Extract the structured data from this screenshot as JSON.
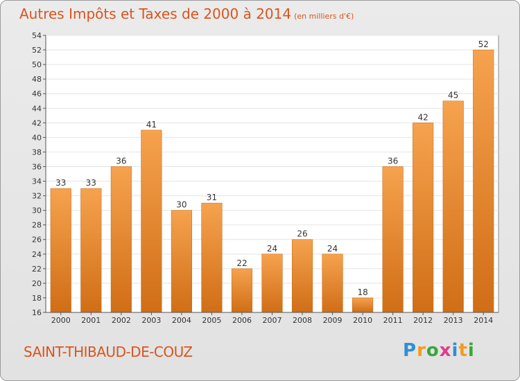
{
  "header": {
    "title": "Autres Impôts et Taxes de 2000 à 2014",
    "unit": "(en milliers d'€)"
  },
  "footer": {
    "commune": "SAINT-THIBAUD-DE-COUZ",
    "logo": [
      "P",
      "r",
      "o",
      "x",
      "i",
      "t",
      "i"
    ],
    "logo_colors": [
      "#2e8fd6",
      "#f39c1e",
      "#3aa63a",
      "#e03c8a",
      "#2e8fd6",
      "#f39c1e",
      "#3aa63a"
    ]
  },
  "colors": {
    "bar_top": "#f6a24e",
    "bar_bottom": "#d06e16",
    "title": "#d9541e"
  },
  "chart_data": {
    "type": "bar",
    "title": "Autres Impôts et Taxes de 2000 à 2014",
    "subtitle": "(en milliers d'€)",
    "xlabel": "",
    "ylabel": "",
    "categories": [
      "2000",
      "2001",
      "2002",
      "2003",
      "2004",
      "2005",
      "2006",
      "2007",
      "2008",
      "2009",
      "2010",
      "2011",
      "2012",
      "2013",
      "2014"
    ],
    "values": [
      33,
      33,
      36,
      41,
      30,
      31,
      22,
      24,
      26,
      24,
      18,
      36,
      42,
      45,
      52
    ],
    "ylim": [
      16,
      54
    ],
    "yticks": [
      16,
      18,
      20,
      22,
      24,
      26,
      28,
      30,
      32,
      34,
      36,
      38,
      40,
      42,
      44,
      46,
      48,
      50,
      52,
      54
    ],
    "grid": true
  }
}
